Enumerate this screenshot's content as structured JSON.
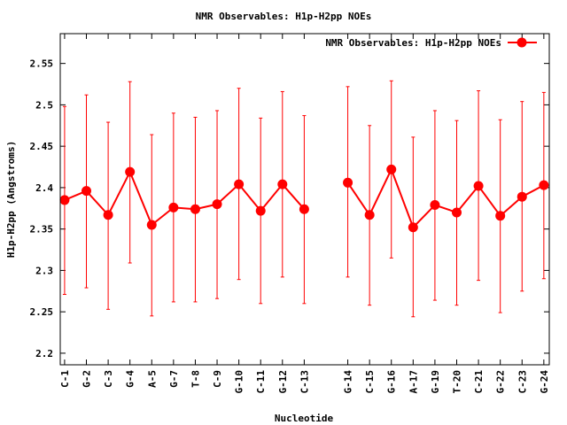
{
  "chart_data": {
    "type": "line",
    "title": "NMR Observables: H1p-H2pp NOEs",
    "xlabel": "Nucleotide",
    "ylabel": "H1p-H2pp (Angstroms)",
    "legend": {
      "label": "NMR Observables: H1p-H2pp NOEs",
      "placement": "top-right"
    },
    "ylim": [
      2.186,
      2.586
    ],
    "xlim": [
      0.8,
      23.25
    ],
    "yticks": [
      2.2,
      2.25,
      2.3,
      2.35,
      2.4,
      2.45,
      2.5,
      2.55
    ],
    "ytick_labels": [
      "2.2",
      "2.25",
      "2.3",
      "2.35",
      "2.4",
      "2.45",
      "2.5",
      "2.55"
    ],
    "grid": false,
    "series_color": "#ff0000",
    "points": [
      {
        "x": 1,
        "label": "C-1",
        "y": 2.385,
        "ylow": 2.271,
        "yhigh": 2.498
      },
      {
        "x": 2,
        "label": "G-2",
        "y": 2.396,
        "ylow": 2.279,
        "yhigh": 2.512
      },
      {
        "x": 3,
        "label": "C-3",
        "y": 2.367,
        "ylow": 2.253,
        "yhigh": 2.479
      },
      {
        "x": 4,
        "label": "G-4",
        "y": 2.419,
        "ylow": 2.309,
        "yhigh": 2.528
      },
      {
        "x": 5,
        "label": "A-5",
        "y": 2.355,
        "ylow": 2.245,
        "yhigh": 2.464
      },
      {
        "x": 6,
        "label": "G-7",
        "y": 2.376,
        "ylow": 2.262,
        "yhigh": 2.49
      },
      {
        "x": 7,
        "label": "T-8",
        "y": 2.374,
        "ylow": 2.262,
        "yhigh": 2.485
      },
      {
        "x": 8,
        "label": "C-9",
        "y": 2.38,
        "ylow": 2.266,
        "yhigh": 2.493
      },
      {
        "x": 9,
        "label": "G-10",
        "y": 2.404,
        "ylow": 2.289,
        "yhigh": 2.52
      },
      {
        "x": 10,
        "label": "C-11",
        "y": 2.372,
        "ylow": 2.26,
        "yhigh": 2.484
      },
      {
        "x": 11,
        "label": "G-12",
        "y": 2.404,
        "ylow": 2.292,
        "yhigh": 2.516
      },
      {
        "x": 12,
        "label": "C-13",
        "y": 2.374,
        "ylow": 2.26,
        "yhigh": 2.487
      },
      {
        "x": 14,
        "label": "G-14",
        "y": 2.406,
        "ylow": 2.292,
        "yhigh": 2.522
      },
      {
        "x": 15,
        "label": "C-15",
        "y": 2.367,
        "ylow": 2.258,
        "yhigh": 2.475
      },
      {
        "x": 16,
        "label": "G-16",
        "y": 2.422,
        "ylow": 2.315,
        "yhigh": 2.529
      },
      {
        "x": 17,
        "label": "A-17",
        "y": 2.352,
        "ylow": 2.244,
        "yhigh": 2.461
      },
      {
        "x": 18,
        "label": "G-19",
        "y": 2.379,
        "ylow": 2.264,
        "yhigh": 2.493
      },
      {
        "x": 19,
        "label": "T-20",
        "y": 2.37,
        "ylow": 2.258,
        "yhigh": 2.481
      },
      {
        "x": 20,
        "label": "C-21",
        "y": 2.402,
        "ylow": 2.288,
        "yhigh": 2.517
      },
      {
        "x": 21,
        "label": "G-22",
        "y": 2.366,
        "ylow": 2.249,
        "yhigh": 2.482
      },
      {
        "x": 22,
        "label": "C-23",
        "y": 2.389,
        "ylow": 2.275,
        "yhigh": 2.504
      },
      {
        "x": 23,
        "label": "G-24",
        "y": 2.403,
        "ylow": 2.29,
        "yhigh": 2.515
      }
    ]
  }
}
